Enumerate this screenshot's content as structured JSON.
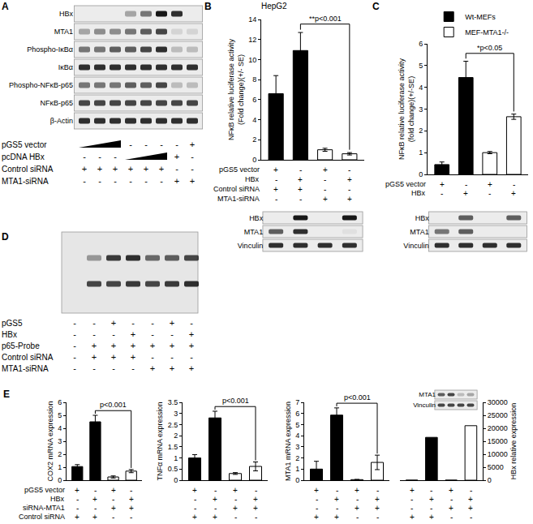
{
  "chart_data": [
    {
      "panel": "B",
      "type": "bar",
      "title": "HepG2",
      "y_label": [
        "NFκB relative luciferase activity",
        "(Fold change)(+/- SE)"
      ],
      "categories": [
        null,
        null,
        null,
        null
      ],
      "values": [
        6.6,
        10.9,
        1.0,
        0.6
      ],
      "errors": [
        1.8,
        1.8,
        0.15,
        0.12
      ],
      "colors": [
        "#000000",
        "#000000",
        "#ffffff",
        "#ffffff"
      ],
      "ylim": [
        0,
        14
      ],
      "yticks": [
        0,
        2,
        4,
        6,
        8,
        10,
        12,
        14
      ],
      "tick_labels": "y",
      "annotations": [
        {
          "text": "**p<0.001",
          "between": [
            1,
            3
          ]
        }
      ],
      "conditions": [
        {
          "label": "pGS5 vector",
          "marks": [
            "+",
            "-",
            "+",
            "-"
          ]
        },
        {
          "label": "HBx",
          "marks": [
            "-",
            "+",
            "-",
            "+"
          ]
        },
        {
          "label": "Control siRNA",
          "marks": [
            "+",
            "+",
            "-",
            "-"
          ]
        },
        {
          "label": "MTA1-siRNA",
          "marks": [
            "-",
            "-",
            "+",
            "+"
          ]
        }
      ]
    },
    {
      "panel": "C",
      "type": "bar",
      "y_label": [
        "NFκB relative luciferase activity",
        "(fold change)(+/-SE)"
      ],
      "categories": [
        null,
        null,
        null,
        null
      ],
      "series": [
        {
          "name": "Wt-MEFs",
          "color": "#000000",
          "values": [
            0.45,
            4.45,
            null,
            null
          ],
          "errors": [
            0.12,
            0.75,
            null,
            null
          ]
        },
        {
          "name": "MEF-MTA1-/-",
          "color": "#ffffff",
          "values": [
            null,
            null,
            1.0,
            2.65
          ],
          "errors": [
            null,
            null,
            0.05,
            0.12
          ]
        }
      ],
      "ylim": [
        0,
        6
      ],
      "yticks": [
        0,
        1,
        2,
        3,
        4,
        5,
        6
      ],
      "tick_labels": "y",
      "legend": "top left",
      "annotations": [
        {
          "text": "*p<0.05",
          "between": [
            1,
            3
          ]
        }
      ],
      "conditions": [
        {
          "label": "pGS5 vector",
          "marks": [
            "+",
            "-",
            "+",
            "-"
          ]
        },
        {
          "label": "HBx",
          "marks": [
            "-",
            "+",
            "-",
            "+"
          ]
        }
      ]
    },
    {
      "panel": "E",
      "type": "bar",
      "y_label": [
        "COX2 mRNA expression"
      ],
      "categories": [
        null,
        null,
        null,
        null
      ],
      "values": [
        1.05,
        4.5,
        0.25,
        0.7
      ],
      "errors": [
        0.15,
        0.5,
        0.08,
        0.12
      ],
      "colors": [
        "#000000",
        "#000000",
        "#ffffff",
        "#ffffff"
      ],
      "ylim": [
        0,
        6
      ],
      "yticks": [
        0,
        1,
        2,
        3,
        4,
        5,
        6
      ],
      "tick_labels": "y",
      "annotations": [
        {
          "text": "p<0.001",
          "between": [
            1,
            3
          ]
        }
      ],
      "conditions": [
        {
          "label": "pGS5 vector",
          "marks": [
            "+",
            "-",
            "+",
            "-"
          ]
        },
        {
          "label": "HBx",
          "marks": [
            "-",
            "+",
            "-",
            "+"
          ]
        },
        {
          "label": "siRNA-MTA1",
          "marks": [
            "-",
            "-",
            "+",
            "+"
          ]
        },
        {
          "label": "Control siRNA",
          "marks": [
            "+",
            "+",
            "-",
            "-"
          ]
        }
      ]
    },
    {
      "type": "bar",
      "y_label": [
        "TNFα mRNA expression"
      ],
      "categories": [
        null,
        null,
        null,
        null
      ],
      "values": [
        1.0,
        2.8,
        0.3,
        0.62
      ],
      "errors": [
        0.15,
        0.3,
        0.04,
        0.2
      ],
      "colors": [
        "#000000",
        "#000000",
        "#ffffff",
        "#ffffff"
      ],
      "ylim": [
        0,
        3.5
      ],
      "yticks": [
        0,
        0.5,
        1,
        1.5,
        2,
        2.5,
        3,
        3.5
      ],
      "tick_labels": "y",
      "annotations": [
        {
          "text": "p<0.001",
          "between": [
            1,
            3
          ]
        }
      ],
      "conditions": [
        {
          "marks": [
            "+",
            "-",
            "+",
            "-"
          ]
        },
        {
          "marks": [
            "-",
            "+",
            "-",
            "+"
          ]
        },
        {
          "marks": [
            "-",
            "-",
            "+",
            "+"
          ]
        },
        {
          "marks": [
            "+",
            "+",
            "-",
            "-"
          ]
        }
      ]
    },
    {
      "type": "bar",
      "y_label": [
        "MTA1 mRNA expression"
      ],
      "categories": [
        null,
        null,
        null,
        null
      ],
      "values": [
        1.0,
        5.85,
        0.05,
        1.6
      ],
      "errors": [
        0.7,
        0.65,
        0.02,
        0.65
      ],
      "colors": [
        "#000000",
        "#000000",
        "#ffffff",
        "#ffffff"
      ],
      "ylim": [
        0,
        7
      ],
      "yticks": [
        0,
        1,
        2,
        3,
        4,
        5,
        6,
        7
      ],
      "tick_labels": "y",
      "annotations": [
        {
          "text": "p<0.001",
          "between": [
            1,
            3
          ]
        }
      ],
      "conditions": [
        {
          "marks": [
            "+",
            "-",
            "+",
            "-"
          ]
        },
        {
          "marks": [
            "-",
            "+",
            "-",
            "+"
          ]
        },
        {
          "marks": [
            "-",
            "-",
            "+",
            "+"
          ]
        },
        {
          "marks": [
            "+",
            "+",
            "-",
            "-"
          ]
        }
      ]
    },
    {
      "type": "bar",
      "y_label": [
        "HBx relative expression"
      ],
      "categories": [
        null,
        null,
        null,
        null
      ],
      "values": [
        0,
        16500,
        0,
        21000
      ],
      "colors": [
        "#000000",
        "#000000",
        "#ffffff",
        "#ffffff"
      ],
      "ylim": [
        0,
        30000
      ],
      "yticks": [
        0,
        5000,
        10000,
        15000,
        20000,
        25000,
        30000
      ],
      "tick_labels": "y",
      "conditions": [
        {
          "marks": [
            "+",
            "-",
            "+",
            "-"
          ]
        },
        {
          "marks": [
            "-",
            "+",
            "-",
            "+"
          ]
        },
        {
          "marks": [
            "-",
            "-",
            "+",
            "+"
          ]
        },
        {
          "marks": [
            "+",
            "+",
            "-",
            "-"
          ]
        }
      ]
    }
  ],
  "blots": [
    {
      "panel": "A",
      "rows": [
        {
          "label": "HBx",
          "bands": [
            0,
            0,
            0,
            0.3,
            0.5,
            0.9,
            0.8,
            0
          ]
        },
        {
          "label": "MTA1",
          "bands": [
            0.3,
            0.4,
            0.4,
            0.5,
            0.6,
            0.7,
            0.1,
            0.1
          ]
        },
        {
          "label": "Phospho-IκBα",
          "bands": [
            0.5,
            0.5,
            0.6,
            0.6,
            0.7,
            0.8,
            0.2,
            0.2
          ]
        },
        {
          "label": "IκBα",
          "bands": [
            0.8,
            0.8,
            0.8,
            0.8,
            0.8,
            0.8,
            0.8,
            0.8
          ]
        },
        {
          "label": "Phospho-NFκB-p65",
          "bands": [
            0.5,
            0.5,
            0.5,
            0.6,
            0.6,
            0.7,
            0.2,
            0.2
          ]
        },
        {
          "label": "NFκB-p65",
          "bands": [
            0.7,
            0.7,
            0.7,
            0.7,
            0.7,
            0.7,
            0.7,
            0.7
          ]
        },
        {
          "label": "β-Actin",
          "bands": [
            0.8,
            0.8,
            0.8,
            0.8,
            0.8,
            0.8,
            0.8,
            0.8
          ]
        }
      ],
      "conditions": [
        {
          "label": "pGS5 vector",
          "marks": [
            null,
            null,
            null,
            "-",
            "-",
            "-",
            "-",
            "+"
          ],
          "ramp": [
            0,
            2
          ]
        },
        {
          "label": "pcDNA HBx",
          "marks": [
            "-",
            "-",
            "-",
            null,
            null,
            null,
            "+",
            "-"
          ],
          "ramp": [
            3,
            5
          ]
        },
        {
          "label": "Control siRNA",
          "marks": [
            "+",
            "+",
            "+",
            "+",
            "+",
            "+",
            "-",
            "-"
          ]
        },
        {
          "label": "MTA1-siRNA",
          "marks": [
            "-",
            "-",
            "-",
            "-",
            "-",
            "-",
            "+",
            "+"
          ]
        }
      ]
    },
    {
      "rows": [
        {
          "label": "HBx",
          "bands": [
            0,
            0.9,
            0,
            0.9
          ]
        },
        {
          "label": "MTA1",
          "bands": [
            0.6,
            0.8,
            0,
            0.05
          ]
        },
        {
          "label": "Vinculin",
          "bands": [
            0.8,
            0.8,
            0.8,
            0.8
          ]
        }
      ]
    },
    {
      "rows": [
        {
          "label": "HBx",
          "bands": [
            0,
            0.6,
            0,
            0.6
          ]
        },
        {
          "label": "MTA1",
          "bands": [
            0.5,
            0.6,
            0,
            0
          ]
        },
        {
          "label": "Vinculin",
          "bands": [
            0.8,
            0.8,
            0.8,
            0.8
          ]
        }
      ]
    },
    {
      "rows": [
        {
          "label": "MTA1",
          "bands": [
            0.6,
            0.7,
            0.2,
            0.3
          ]
        },
        {
          "label": "Vinculin",
          "bands": [
            0.7,
            0.7,
            0.7,
            0.7
          ]
        }
      ]
    }
  ],
  "gel": {
    "panel": "D",
    "bands": [
      [
        0,
        0.35,
        0.75,
        0.8,
        0.55,
        0.6,
        0.7
      ],
      [
        0,
        0.7,
        0.7,
        0.75,
        0.7,
        0.75,
        0.8
      ]
    ],
    "conditions": [
      {
        "label": "pGS5",
        "marks": [
          "-",
          "-",
          "+",
          "-",
          "-",
          "+",
          "-"
        ]
      },
      {
        "label": "HBx",
        "marks": [
          "-",
          "-",
          "-",
          "+",
          "-",
          "-",
          "+"
        ]
      },
      {
        "label": "p65-Probe",
        "marks": [
          "-",
          "+",
          "+",
          "+",
          "+",
          "+",
          "+"
        ]
      },
      {
        "label": "Control siRNA",
        "marks": [
          "-",
          "+",
          "+",
          "+",
          "-",
          "-",
          "-"
        ]
      },
      {
        "label": "MTA1-siRNA",
        "marks": [
          "-",
          "-",
          "-",
          "-",
          "+",
          "+",
          "+"
        ]
      }
    ]
  }
}
